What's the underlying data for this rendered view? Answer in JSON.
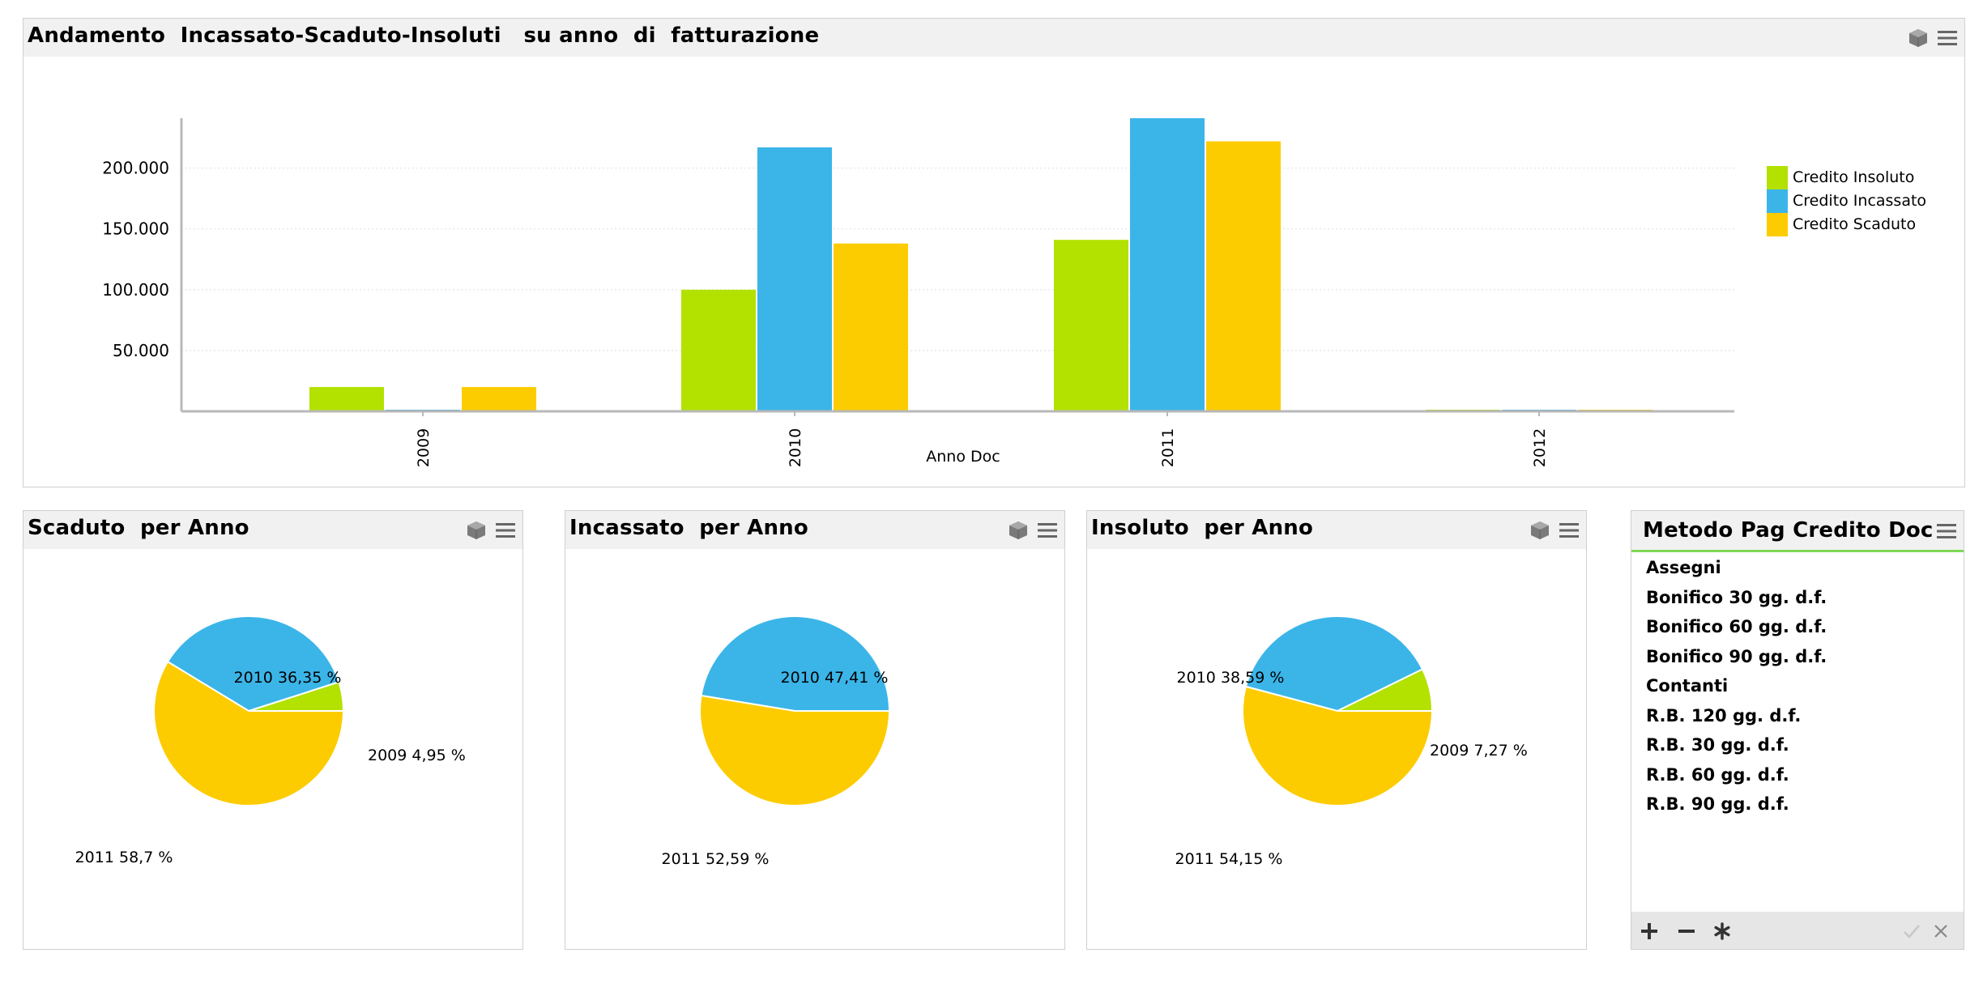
{
  "main_chart": {
    "title": "Andamento  Incassato-Scaduto-Insoluti   su anno  di  fatturazione",
    "xlabel": "Anno Doc",
    "y_ticks": [
      "200.000",
      "150.000",
      "100.000",
      "50.000"
    ],
    "legend": [
      "Credito Insoluto",
      "Credito Incassato",
      "Credito Scaduto"
    ]
  },
  "pies": [
    {
      "title": "Scaduto  per Anno",
      "labels": [
        "2010 36,35 %",
        "2009 4,95 %",
        "2011 58,7 %"
      ]
    },
    {
      "title": "Incassato  per Anno",
      "labels": [
        "2010 47,41 %",
        "2011 52,59 %"
      ]
    },
    {
      "title": "Insoluto  per Anno",
      "labels": [
        "2010 38,59 %",
        "2009 7,27 %",
        "2011 54,15 %"
      ]
    }
  ],
  "list_box": {
    "title": "Metodo Pag Credito Doc",
    "items": [
      "Assegni",
      "Bonifico 30 gg. d.f.",
      "Bonifico 60 gg. d.f.",
      "Bonifico 90 gg. d.f.",
      "Contanti",
      "R.B. 120 gg. d.f.",
      "R.B. 30 gg. d.f.",
      "R.B. 60 gg. d.f.",
      "R.B. 90 gg. d.f."
    ]
  },
  "icons": {
    "cube": "cube-icon",
    "menu": "menu-icon",
    "add": "plus-icon",
    "remove": "minus-icon",
    "select_all": "asterisk-icon",
    "confirm": "check-icon",
    "close": "close-icon"
  },
  "colors": {
    "insoluto": "#b3e100",
    "incassato": "#3bb5e8",
    "scaduto": "#fdcc00",
    "header_bg": "#f1f1f1",
    "selection_accent": "#7ed957"
  },
  "chart_data": [
    {
      "type": "bar",
      "title": "Andamento  Incassato-Scaduto-Insoluti   su anno  di  fatturazione",
      "xlabel": "Anno Doc",
      "ylabel": "",
      "categories": [
        "2009",
        "2010",
        "2011",
        "2012"
      ],
      "series": [
        {
          "name": "Credito Insoluto",
          "color": "#b3e100",
          "values": [
            20000,
            100000,
            141000,
            1000
          ]
        },
        {
          "name": "Credito Incassato",
          "color": "#3bb5e8",
          "values": [
            1000,
            217000,
            241000,
            1000
          ]
        },
        {
          "name": "Credito Scaduto",
          "color": "#fdcc00",
          "values": [
            20000,
            138000,
            222000,
            1000
          ]
        }
      ],
      "ylim": [
        0,
        241000
      ],
      "y_ticks": [
        50000,
        100000,
        150000,
        200000
      ],
      "grid": true,
      "legend": "right"
    },
    {
      "type": "pie",
      "title": "Scaduto  per Anno",
      "slices": [
        {
          "label": "2010",
          "value": 36.35,
          "color": "#3bb5e8",
          "text": "2010 36,35 %"
        },
        {
          "label": "2009",
          "value": 4.95,
          "color": "#b3e100",
          "text": "2009 4,95 %"
        },
        {
          "label": "2011",
          "value": 58.7,
          "color": "#fdcc00",
          "text": "2011 58,7 %"
        }
      ]
    },
    {
      "type": "pie",
      "title": "Incassato  per Anno",
      "slices": [
        {
          "label": "2010",
          "value": 47.41,
          "color": "#3bb5e8",
          "text": "2010 47,41 %"
        },
        {
          "label": "2011",
          "value": 52.59,
          "color": "#fdcc00",
          "text": "2011 52,59 %"
        }
      ]
    },
    {
      "type": "pie",
      "title": "Insoluto  per Anno",
      "slices": [
        {
          "label": "2010",
          "value": 38.59,
          "color": "#3bb5e8",
          "text": "2010 38,59 %"
        },
        {
          "label": "2009",
          "value": 7.27,
          "color": "#b3e100",
          "text": "2009 7,27 %"
        },
        {
          "label": "2011",
          "value": 54.15,
          "color": "#fdcc00",
          "text": "2011 54,15 %"
        }
      ]
    }
  ]
}
